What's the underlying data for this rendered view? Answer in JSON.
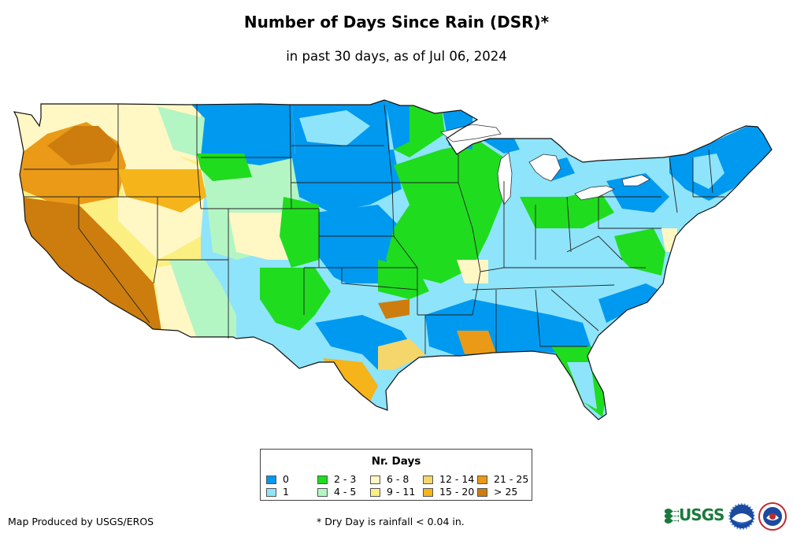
{
  "header": {
    "title": "Number of Days Since Rain (DSR)*",
    "subtitle": "in past 30 days, as of Jul 06, 2024"
  },
  "legend": {
    "title": "Nr. Days",
    "items": [
      {
        "label": "0",
        "color": "#0099f0"
      },
      {
        "label": "1",
        "color": "#8ee4fa"
      },
      {
        "label": "2 - 3",
        "color": "#1fdc1f"
      },
      {
        "label": "4 - 5",
        "color": "#b4f5c4"
      },
      {
        "label": "6 - 8",
        "color": "#fff7c4"
      },
      {
        "label": "9 - 11",
        "color": "#fbef82"
      },
      {
        "label": "12 - 14",
        "color": "#f4d66a"
      },
      {
        "label": "15 - 20",
        "color": "#f5b419"
      },
      {
        "label": "21 - 25",
        "color": "#ea9a16"
      },
      {
        "label": "> 25",
        "color": "#cc7d0e"
      }
    ]
  },
  "footer": {
    "credit": "Map Produced by USGS/EROS",
    "footnote": "* Dry Day is rainfall < 0.04 in."
  },
  "logos": {
    "usgs_text": "USGS",
    "usgs_color": "#1a7a3c"
  }
}
